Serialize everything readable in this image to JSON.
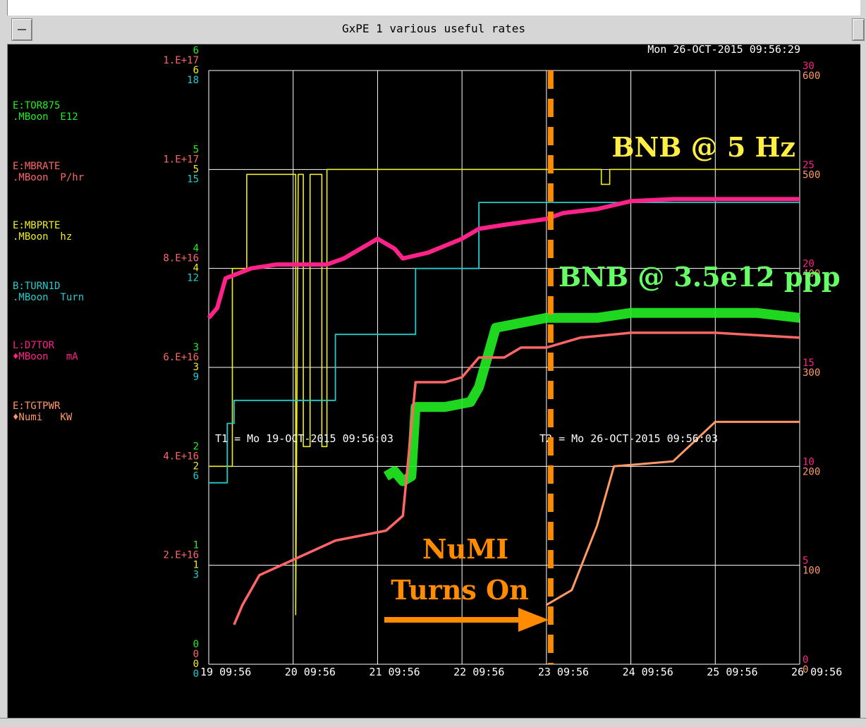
{
  "window": {
    "title": "GxPE 1 various useful rates"
  },
  "timestamp": "Mon 26-OCT-2015 09:56:29",
  "t1": "T1 = Mo 19-OCT-2015 09:56:03",
  "t2": "T2 = Mo 26-OCT-2015 09:56:03",
  "colors": {
    "green": "#22ee22",
    "salmon": "#ff6666",
    "yellow": "#eeee22",
    "cyan": "#22cccc",
    "magenta": "#ff2288",
    "orange": "#ff9966",
    "annotation_orange": "#ff8c00",
    "annotation_yellow": "#ffee44",
    "annotation_green": "#66ff66"
  },
  "legend": [
    {
      "line1": "E:TOR875",
      "line2": ".MBoon  E12",
      "color": "#22ee22"
    },
    {
      "line1": "E:MBRATE",
      "line2": ".MBoon  P/hr",
      "color": "#ff6666"
    },
    {
      "line1": "E:MBPRTE",
      "line2": ".MBoon  hz",
      "color": "#eeee22"
    },
    {
      "line1": "B:TURN1D",
      "line2": ".MBoon  Turn",
      "color": "#22cccc"
    },
    {
      "line1": "L:D7TOR",
      "line2": "♦MBoon   mA",
      "color": "#ff2288"
    },
    {
      "line1": "E:TGTPWR",
      "line2": "♦Numi   KW",
      "color": "#ff9966"
    }
  ],
  "annotations": {
    "bnb_rate": "BNB @ 5 Hz",
    "bnb_ppp": "BNB @ 3.5e12 ppp",
    "numi_line1": "NuMI",
    "numi_line2": "Turns On"
  },
  "chart_data": {
    "type": "line",
    "x_ticks": [
      "19 09:56",
      "20 09:56",
      "21 09:56",
      "22 09:56",
      "23 09:56",
      "24 09:56",
      "25 09:56",
      "26 09:56"
    ],
    "left_axes": [
      {
        "color": "#22ee22",
        "ticks": [
          "0",
          "1",
          "2",
          "3",
          "4",
          "5",
          "6"
        ]
      },
      {
        "color": "#ff6666",
        "ticks": [
          "0",
          "2.E+16",
          "4.E+16",
          "6.E+16",
          "8.E+16",
          "1.E+17",
          "1.E+17"
        ]
      },
      {
        "color": "#eeee22",
        "ticks": [
          "0",
          "1",
          "2",
          "3",
          "4",
          "5",
          "6"
        ]
      },
      {
        "color": "#22cccc",
        "ticks": [
          "0",
          "3",
          "6",
          "9",
          "12",
          "15",
          "18"
        ]
      }
    ],
    "right_axes": [
      {
        "color": "#ff2288",
        "ticks": [
          "0",
          "5",
          "10",
          "15",
          "20",
          "25",
          "30"
        ]
      },
      {
        "color": "#ff9966",
        "ticks": [
          "0",
          "100",
          "200",
          "300",
          "400",
          "500",
          "600"
        ]
      }
    ],
    "series": [
      {
        "name": "E:MBPRTE",
        "color": "#eeee22",
        "points": [
          [
            0,
            2.0
          ],
          [
            0.28,
            2.0
          ],
          [
            0.28,
            4.0
          ],
          [
            0.45,
            4.0
          ],
          [
            0.45,
            4.95
          ],
          [
            1.03,
            4.95
          ],
          [
            1.03,
            0.5
          ],
          [
            1.06,
            4.95
          ],
          [
            1.12,
            4.95
          ],
          [
            1.12,
            2.2
          ],
          [
            1.2,
            2.2
          ],
          [
            1.2,
            4.95
          ],
          [
            1.34,
            4.95
          ],
          [
            1.34,
            2.2
          ],
          [
            1.4,
            2.2
          ],
          [
            1.4,
            5.0
          ],
          [
            4.65,
            5.0
          ],
          [
            4.65,
            4.85
          ],
          [
            4.75,
            4.85
          ],
          [
            4.75,
            5.0
          ],
          [
            7.0,
            5.0
          ]
        ]
      },
      {
        "name": "B:TURN1D",
        "color": "#22cccc",
        "points": [
          [
            0,
            5.5
          ],
          [
            0.22,
            5.5
          ],
          [
            0.22,
            7.3
          ],
          [
            0.3,
            7.3
          ],
          [
            0.3,
            8.0
          ],
          [
            1.5,
            8.0
          ],
          [
            1.5,
            10.0
          ],
          [
            2.45,
            10.0
          ],
          [
            2.45,
            12.0
          ],
          [
            3.2,
            12.0
          ],
          [
            3.2,
            14.0
          ],
          [
            7.0,
            14.0
          ]
        ]
      },
      {
        "name": "E:TOR875",
        "color": "#22ee22",
        "points": [
          [
            2.1,
            1.9
          ],
          [
            2.2,
            1.95
          ],
          [
            2.3,
            1.85
          ],
          [
            2.4,
            1.9
          ],
          [
            2.45,
            2.6
          ],
          [
            2.75,
            2.6
          ],
          [
            2.8,
            2.6
          ],
          [
            3.1,
            2.65
          ],
          [
            3.2,
            2.8
          ],
          [
            3.4,
            3.4
          ],
          [
            4.0,
            3.5
          ],
          [
            4.6,
            3.5
          ],
          [
            5.0,
            3.55
          ],
          [
            5.5,
            3.55
          ],
          [
            6.0,
            3.55
          ],
          [
            6.5,
            3.55
          ],
          [
            7.0,
            3.5
          ]
        ]
      },
      {
        "name": "E:MBRATE",
        "color": "#ff6666",
        "points": [
          [
            0.3,
            0.4
          ],
          [
            0.4,
            0.6
          ],
          [
            0.5,
            0.75
          ],
          [
            0.6,
            0.9
          ],
          [
            1.5,
            1.25
          ],
          [
            1.8,
            1.3
          ],
          [
            2.1,
            1.35
          ],
          [
            2.3,
            1.5
          ],
          [
            2.45,
            2.85
          ],
          [
            2.8,
            2.85
          ],
          [
            3.0,
            2.9
          ],
          [
            3.1,
            3.0
          ],
          [
            3.2,
            3.1
          ],
          [
            3.5,
            3.1
          ],
          [
            3.7,
            3.2
          ],
          [
            4.0,
            3.2
          ],
          [
            4.4,
            3.3
          ],
          [
            5.0,
            3.35
          ],
          [
            6.0,
            3.35
          ],
          [
            7.0,
            3.3
          ]
        ]
      },
      {
        "name": "L:D7TOR",
        "color": "#ff2288",
        "points": [
          [
            0,
            17.5
          ],
          [
            0.1,
            18.0
          ],
          [
            0.2,
            19.5
          ],
          [
            0.5,
            20.0
          ],
          [
            0.8,
            20.2
          ],
          [
            1.4,
            20.2
          ],
          [
            1.6,
            20.5
          ],
          [
            2.0,
            21.5
          ],
          [
            2.2,
            21.0
          ],
          [
            2.3,
            20.5
          ],
          [
            2.6,
            20.8
          ],
          [
            3.0,
            21.5
          ],
          [
            3.2,
            22.0
          ],
          [
            3.5,
            22.2
          ],
          [
            4.0,
            22.5
          ],
          [
            4.2,
            22.8
          ],
          [
            4.6,
            23.0
          ],
          [
            5.0,
            23.4
          ],
          [
            5.5,
            23.5
          ],
          [
            6.0,
            23.5
          ],
          [
            6.5,
            23.5
          ],
          [
            7.0,
            23.5
          ]
        ]
      },
      {
        "name": "E:TGTPWR",
        "color": "#ff9966",
        "points": [
          [
            4.0,
            60
          ],
          [
            4.3,
            75
          ],
          [
            4.6,
            140
          ],
          [
            4.8,
            200
          ],
          [
            5.5,
            205
          ],
          [
            6.0,
            245
          ],
          [
            6.5,
            245
          ],
          [
            7.0,
            245
          ]
        ]
      }
    ]
  }
}
